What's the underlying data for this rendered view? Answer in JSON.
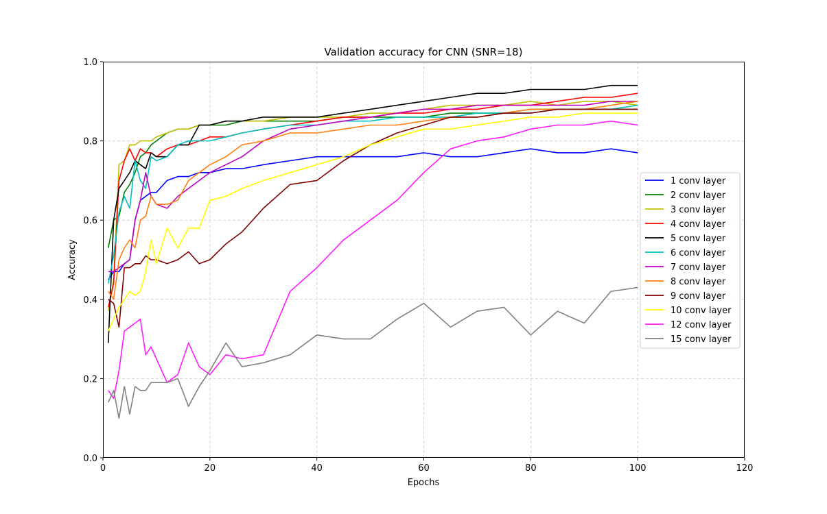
{
  "chart_data": {
    "type": "line",
    "title": "Validation accuracy for CNN (SNR=18)",
    "xlabel": "Epochs",
    "ylabel": "Accuracy",
    "xlim": [
      0,
      120
    ],
    "ylim": [
      0.0,
      1.0
    ],
    "xticks": [
      "0",
      "20",
      "40",
      "60",
      "80",
      "100",
      "120"
    ],
    "yticks": [
      "0.0",
      "0.2",
      "0.4",
      "0.6",
      "0.8",
      "1.0"
    ],
    "grid": true,
    "legend_position": "center-right",
    "x_sample_epochs": [
      1,
      2,
      3,
      4,
      5,
      6,
      7,
      8,
      9,
      10,
      12,
      14,
      16,
      18,
      20,
      23,
      26,
      30,
      35,
      40,
      45,
      50,
      55,
      60,
      65,
      70,
      75,
      80,
      85,
      90,
      95,
      100
    ],
    "series": [
      {
        "name": "1 conv layer",
        "color": "#0000ff",
        "values": [
          0.45,
          0.47,
          0.47,
          0.49,
          0.5,
          0.6,
          0.65,
          0.66,
          0.67,
          0.67,
          0.7,
          0.71,
          0.71,
          0.72,
          0.72,
          0.73,
          0.73,
          0.74,
          0.75,
          0.76,
          0.76,
          0.76,
          0.76,
          0.77,
          0.76,
          0.76,
          0.77,
          0.78,
          0.77,
          0.77,
          0.78,
          0.77
        ]
      },
      {
        "name": "2 conv layer",
        "color": "#008000",
        "values": [
          0.53,
          0.6,
          0.61,
          0.67,
          0.69,
          0.72,
          0.76,
          0.77,
          0.79,
          0.8,
          0.82,
          0.83,
          0.83,
          0.84,
          0.84,
          0.84,
          0.85,
          0.85,
          0.85,
          0.85,
          0.86,
          0.86,
          0.86,
          0.86,
          0.87,
          0.87,
          0.87,
          0.88,
          0.88,
          0.88,
          0.88,
          0.88
        ]
      },
      {
        "name": "3 conv layer",
        "color": "#bfbf00",
        "values": [
          0.37,
          0.45,
          0.74,
          0.75,
          0.79,
          0.79,
          0.8,
          0.8,
          0.8,
          0.81,
          0.82,
          0.83,
          0.83,
          0.84,
          0.84,
          0.85,
          0.85,
          0.85,
          0.86,
          0.86,
          0.86,
          0.87,
          0.87,
          0.88,
          0.89,
          0.89,
          0.89,
          0.9,
          0.89,
          0.9,
          0.9,
          0.89
        ]
      },
      {
        "name": "4 conv layer",
        "color": "#ff0000",
        "values": [
          0.38,
          0.44,
          0.7,
          0.75,
          0.78,
          0.75,
          0.78,
          0.77,
          0.77,
          0.76,
          0.78,
          0.79,
          0.79,
          0.8,
          0.81,
          0.81,
          0.82,
          0.83,
          0.84,
          0.85,
          0.86,
          0.86,
          0.87,
          0.87,
          0.88,
          0.88,
          0.89,
          0.89,
          0.9,
          0.91,
          0.91,
          0.92
        ]
      },
      {
        "name": "5 conv layer",
        "color": "#000000",
        "values": [
          0.29,
          0.6,
          0.68,
          0.7,
          0.72,
          0.75,
          0.74,
          0.73,
          0.77,
          0.76,
          0.76,
          0.79,
          0.79,
          0.84,
          0.84,
          0.85,
          0.85,
          0.86,
          0.86,
          0.86,
          0.87,
          0.88,
          0.89,
          0.9,
          0.91,
          0.92,
          0.92,
          0.93,
          0.93,
          0.93,
          0.94,
          0.94
        ]
      },
      {
        "name": "6 conv layer",
        "color": "#00bfbf",
        "values": [
          0.44,
          0.51,
          0.62,
          0.66,
          0.63,
          0.75,
          0.7,
          0.68,
          0.76,
          0.75,
          0.76,
          0.79,
          0.8,
          0.8,
          0.8,
          0.81,
          0.82,
          0.83,
          0.84,
          0.84,
          0.85,
          0.85,
          0.86,
          0.86,
          0.86,
          0.87,
          0.87,
          0.87,
          0.88,
          0.88,
          0.88,
          0.89
        ]
      },
      {
        "name": "7 conv layer",
        "color": "#bf00bf",
        "values": [
          0.47,
          0.47,
          0.48,
          0.49,
          0.5,
          0.6,
          0.65,
          0.72,
          0.66,
          0.64,
          0.63,
          0.66,
          0.68,
          0.7,
          0.72,
          0.74,
          0.76,
          0.8,
          0.83,
          0.84,
          0.85,
          0.86,
          0.87,
          0.88,
          0.88,
          0.89,
          0.89,
          0.89,
          0.89,
          0.89,
          0.9,
          0.9
        ]
      },
      {
        "name": "8 conv layer",
        "color": "#ff7f0e",
        "values": [
          0.42,
          0.4,
          0.5,
          0.53,
          0.55,
          0.53,
          0.6,
          0.61,
          0.66,
          0.64,
          0.64,
          0.65,
          0.7,
          0.72,
          0.74,
          0.76,
          0.79,
          0.8,
          0.82,
          0.82,
          0.83,
          0.84,
          0.84,
          0.85,
          0.86,
          0.86,
          0.87,
          0.88,
          0.88,
          0.88,
          0.89,
          0.9
        ]
      },
      {
        "name": "9 conv layer",
        "color": "#800000",
        "values": [
          0.4,
          0.39,
          0.33,
          0.48,
          0.48,
          0.49,
          0.49,
          0.51,
          0.5,
          0.5,
          0.49,
          0.5,
          0.52,
          0.49,
          0.5,
          0.54,
          0.57,
          0.63,
          0.69,
          0.7,
          0.75,
          0.79,
          0.82,
          0.84,
          0.86,
          0.86,
          0.87,
          0.87,
          0.88,
          0.88,
          0.88,
          0.88
        ]
      },
      {
        "name": "10 conv layer",
        "color": "#ffff00",
        "values": [
          0.32,
          0.35,
          0.38,
          0.4,
          0.42,
          0.41,
          0.42,
          0.47,
          0.55,
          0.49,
          0.58,
          0.53,
          0.58,
          0.58,
          0.65,
          0.66,
          0.68,
          0.7,
          0.72,
          0.74,
          0.76,
          0.79,
          0.81,
          0.83,
          0.83,
          0.84,
          0.85,
          0.86,
          0.86,
          0.87,
          0.87,
          0.87
        ]
      },
      {
        "name": "12 conv layer",
        "color": "#ff1aff",
        "values": [
          0.17,
          0.15,
          0.22,
          0.32,
          0.33,
          0.34,
          0.35,
          0.26,
          0.28,
          0.25,
          0.19,
          0.21,
          0.29,
          0.23,
          0.21,
          0.26,
          0.25,
          0.26,
          0.42,
          0.48,
          0.55,
          0.6,
          0.65,
          0.72,
          0.78,
          0.8,
          0.81,
          0.83,
          0.84,
          0.84,
          0.85,
          0.84
        ]
      },
      {
        "name": "15 conv layer",
        "color": "#808080",
        "values": [
          0.14,
          0.17,
          0.1,
          0.18,
          0.11,
          0.18,
          0.17,
          0.17,
          0.19,
          0.19,
          0.19,
          0.2,
          0.13,
          0.18,
          0.22,
          0.29,
          0.23,
          0.24,
          0.26,
          0.31,
          0.3,
          0.3,
          0.35,
          0.39,
          0.33,
          0.37,
          0.38,
          0.31,
          0.37,
          0.34,
          0.42,
          0.43
        ]
      }
    ]
  }
}
